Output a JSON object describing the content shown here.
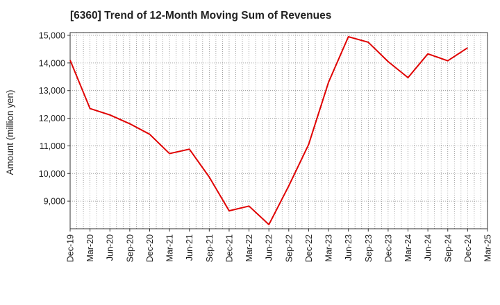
{
  "chart_data": {
    "type": "line",
    "title": "[6360]  Trend of 12-Month Moving Sum of Revenues",
    "xlabel": "",
    "ylabel": "Amount (million yen)",
    "ylim": [
      8000,
      15100
    ],
    "yticks": [
      9000,
      10000,
      11000,
      12000,
      13000,
      14000,
      15000
    ],
    "ytick_labels": [
      "9,000",
      "10,000",
      "11,000",
      "12,000",
      "13,000",
      "14,000",
      "15,000"
    ],
    "x_tick_labels": [
      "Dec-19",
      "Mar-20",
      "Jun-20",
      "Sep-20",
      "Dec-20",
      "Mar-21",
      "Jun-21",
      "Sep-21",
      "Dec-21",
      "Mar-22",
      "Jun-22",
      "Sep-22",
      "Dec-22",
      "Mar-23",
      "Jun-23",
      "Sep-23",
      "Dec-23",
      "Mar-24",
      "Jun-24",
      "Sep-24",
      "Dec-24",
      "Mar-25"
    ],
    "grid": true,
    "series": [
      {
        "color": "#e00000",
        "x": [
          "Dec-19",
          "Mar-20",
          "Jun-20",
          "Sep-20",
          "Dec-20",
          "Mar-21",
          "Jun-21",
          "Sep-21",
          "Dec-21",
          "Mar-22",
          "Jun-22",
          "Sep-22",
          "Dec-22",
          "Mar-23",
          "Jun-23",
          "Sep-23",
          "Dec-23",
          "Mar-24",
          "Jun-24",
          "Sep-24",
          "Dec-24"
        ],
        "values": [
          14100,
          12350,
          12120,
          11800,
          11420,
          10720,
          10880,
          9870,
          8650,
          8820,
          8150,
          9550,
          11050,
          13300,
          14950,
          14750,
          14050,
          13470,
          14330,
          14080,
          14550
        ]
      }
    ]
  }
}
